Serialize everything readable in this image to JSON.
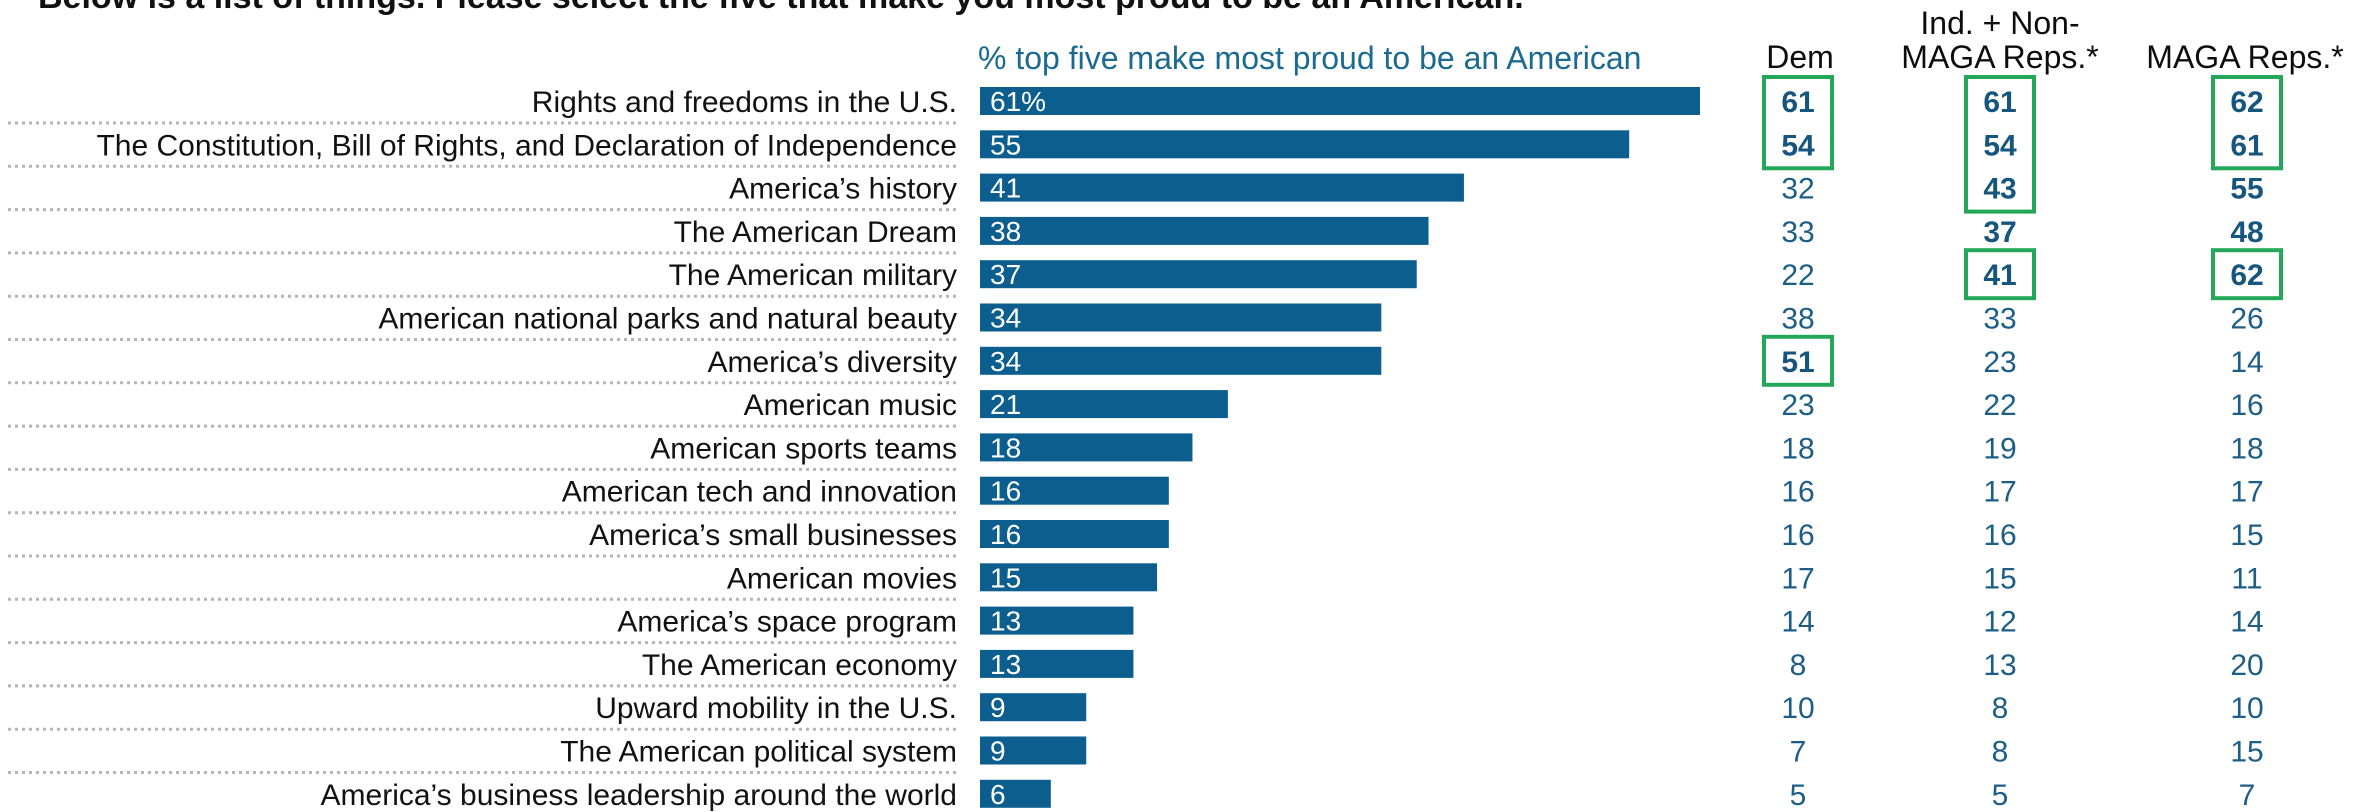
{
  "question": "Below is a list of things. Please select the five that make you most proud to be an American.",
  "bar_header": "% top five make most proud to be an American",
  "columns": [
    {
      "key": "dem",
      "label_lines": [
        "Dem"
      ]
    },
    {
      "key": "ind",
      "label_lines": [
        "Ind. + Non-",
        "MAGA Reps.*"
      ]
    },
    {
      "key": "maga",
      "label_lines": [
        "MAGA Reps.*"
      ]
    }
  ],
  "colors": {
    "bar": "#0b5e8e",
    "highlight_box": "#23a85a",
    "table_text": "#1d5e86",
    "header_text": "#1a6a91"
  },
  "chart_data": {
    "type": "bar",
    "orientation": "horizontal",
    "title": "% top five make most proud to be an American",
    "value_suffix_first": "%",
    "xlim": [
      0,
      61
    ],
    "grid": false,
    "categories": [
      "Rights and freedoms in the U.S.",
      "The Constitution, Bill of Rights, and Declaration of Independence",
      "America’s history",
      "The American Dream",
      "The American military",
      "American national parks and natural beauty",
      "America’s diversity",
      "American music",
      "American sports teams",
      "American tech and innovation",
      "America’s small businesses",
      "American movies",
      "America’s space program",
      "The American economy",
      "Upward mobility in the U.S.",
      "The American political system",
      "America’s business leadership around the world"
    ],
    "values": [
      61,
      55,
      41,
      38,
      37,
      34,
      34,
      21,
      18,
      16,
      16,
      15,
      13,
      13,
      9,
      9,
      6
    ],
    "table": {
      "dem": [
        61,
        54,
        32,
        33,
        22,
        38,
        51,
        23,
        18,
        16,
        16,
        17,
        14,
        8,
        10,
        7,
        5
      ],
      "ind": [
        61,
        54,
        43,
        37,
        41,
        33,
        23,
        22,
        19,
        17,
        16,
        15,
        12,
        13,
        8,
        8,
        5
      ],
      "maga": [
        62,
        61,
        55,
        48,
        62,
        26,
        14,
        16,
        18,
        17,
        15,
        11,
        14,
        20,
        10,
        15,
        7
      ]
    },
    "bold_cells": {
      "dem": [
        0,
        1,
        6
      ],
      "ind": [
        0,
        1,
        2,
        3,
        4
      ],
      "maga": [
        0,
        1,
        2,
        3,
        4
      ]
    },
    "boxed_cells": {
      "dem": [
        0,
        1,
        6
      ],
      "ind": [
        0,
        1,
        2,
        4
      ],
      "maga": [
        0,
        1,
        4
      ]
    }
  }
}
